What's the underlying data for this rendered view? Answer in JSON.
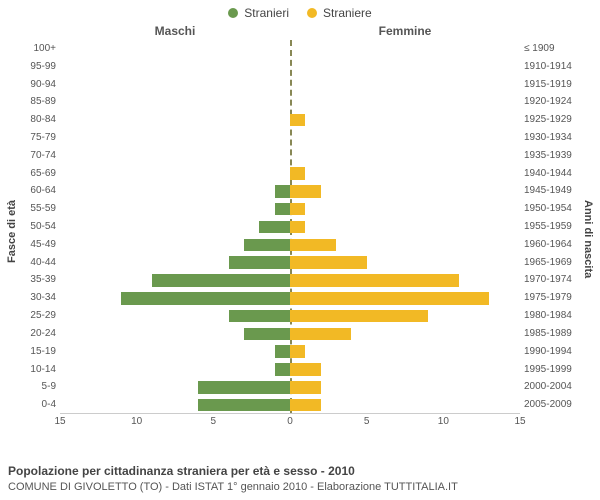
{
  "chart": {
    "type": "population-pyramid",
    "background_color": "#ffffff",
    "grid_color": "#e5e5e5",
    "center_line_color": "#999966",
    "font_family": "Arial",
    "label_fontsize": 10,
    "axis_title_fontsize": 11,
    "bar_height_ratio": 0.7,
    "legend": {
      "items": [
        {
          "label": "Stranieri",
          "color": "#6a994e"
        },
        {
          "label": "Straniere",
          "color": "#f2b925"
        }
      ]
    },
    "columns": {
      "left_header": "Maschi",
      "right_header": "Femmine"
    },
    "y_left_title": "Fasce di età",
    "y_right_title": "Anni di nascita",
    "x_axis": {
      "max": 15,
      "ticks_left": [
        15,
        10,
        5,
        0
      ],
      "ticks_right": [
        0,
        5,
        10,
        15
      ]
    },
    "colors": {
      "male": "#6a994e",
      "female": "#f2b925"
    },
    "rows": [
      {
        "age": "100+",
        "birth": "≤ 1909",
        "male": 0,
        "female": 0
      },
      {
        "age": "95-99",
        "birth": "1910-1914",
        "male": 0,
        "female": 0
      },
      {
        "age": "90-94",
        "birth": "1915-1919",
        "male": 0,
        "female": 0
      },
      {
        "age": "85-89",
        "birth": "1920-1924",
        "male": 0,
        "female": 0
      },
      {
        "age": "80-84",
        "birth": "1925-1929",
        "male": 0,
        "female": 1
      },
      {
        "age": "75-79",
        "birth": "1930-1934",
        "male": 0,
        "female": 0
      },
      {
        "age": "70-74",
        "birth": "1935-1939",
        "male": 0,
        "female": 0
      },
      {
        "age": "65-69",
        "birth": "1940-1944",
        "male": 0,
        "female": 1
      },
      {
        "age": "60-64",
        "birth": "1945-1949",
        "male": 1,
        "female": 2
      },
      {
        "age": "55-59",
        "birth": "1950-1954",
        "male": 1,
        "female": 1
      },
      {
        "age": "50-54",
        "birth": "1955-1959",
        "male": 2,
        "female": 1
      },
      {
        "age": "45-49",
        "birth": "1960-1964",
        "male": 3,
        "female": 3
      },
      {
        "age": "40-44",
        "birth": "1965-1969",
        "male": 4,
        "female": 5
      },
      {
        "age": "35-39",
        "birth": "1970-1974",
        "male": 9,
        "female": 11
      },
      {
        "age": "30-34",
        "birth": "1975-1979",
        "male": 11,
        "female": 13
      },
      {
        "age": "25-29",
        "birth": "1980-1984",
        "male": 4,
        "female": 9
      },
      {
        "age": "20-24",
        "birth": "1985-1989",
        "male": 3,
        "female": 4
      },
      {
        "age": "15-19",
        "birth": "1990-1994",
        "male": 1,
        "female": 1
      },
      {
        "age": "10-14",
        "birth": "1995-1999",
        "male": 1,
        "female": 2
      },
      {
        "age": "5-9",
        "birth": "2000-2004",
        "male": 6,
        "female": 2
      },
      {
        "age": "0-4",
        "birth": "2005-2009",
        "male": 6,
        "female": 2
      }
    ],
    "caption_title": "Popolazione per cittadinanza straniera per età e sesso - 2010",
    "caption_sub": "COMUNE DI GIVOLETTO (TO) - Dati ISTAT 1° gennaio 2010 - Elaborazione TUTTITALIA.IT"
  }
}
